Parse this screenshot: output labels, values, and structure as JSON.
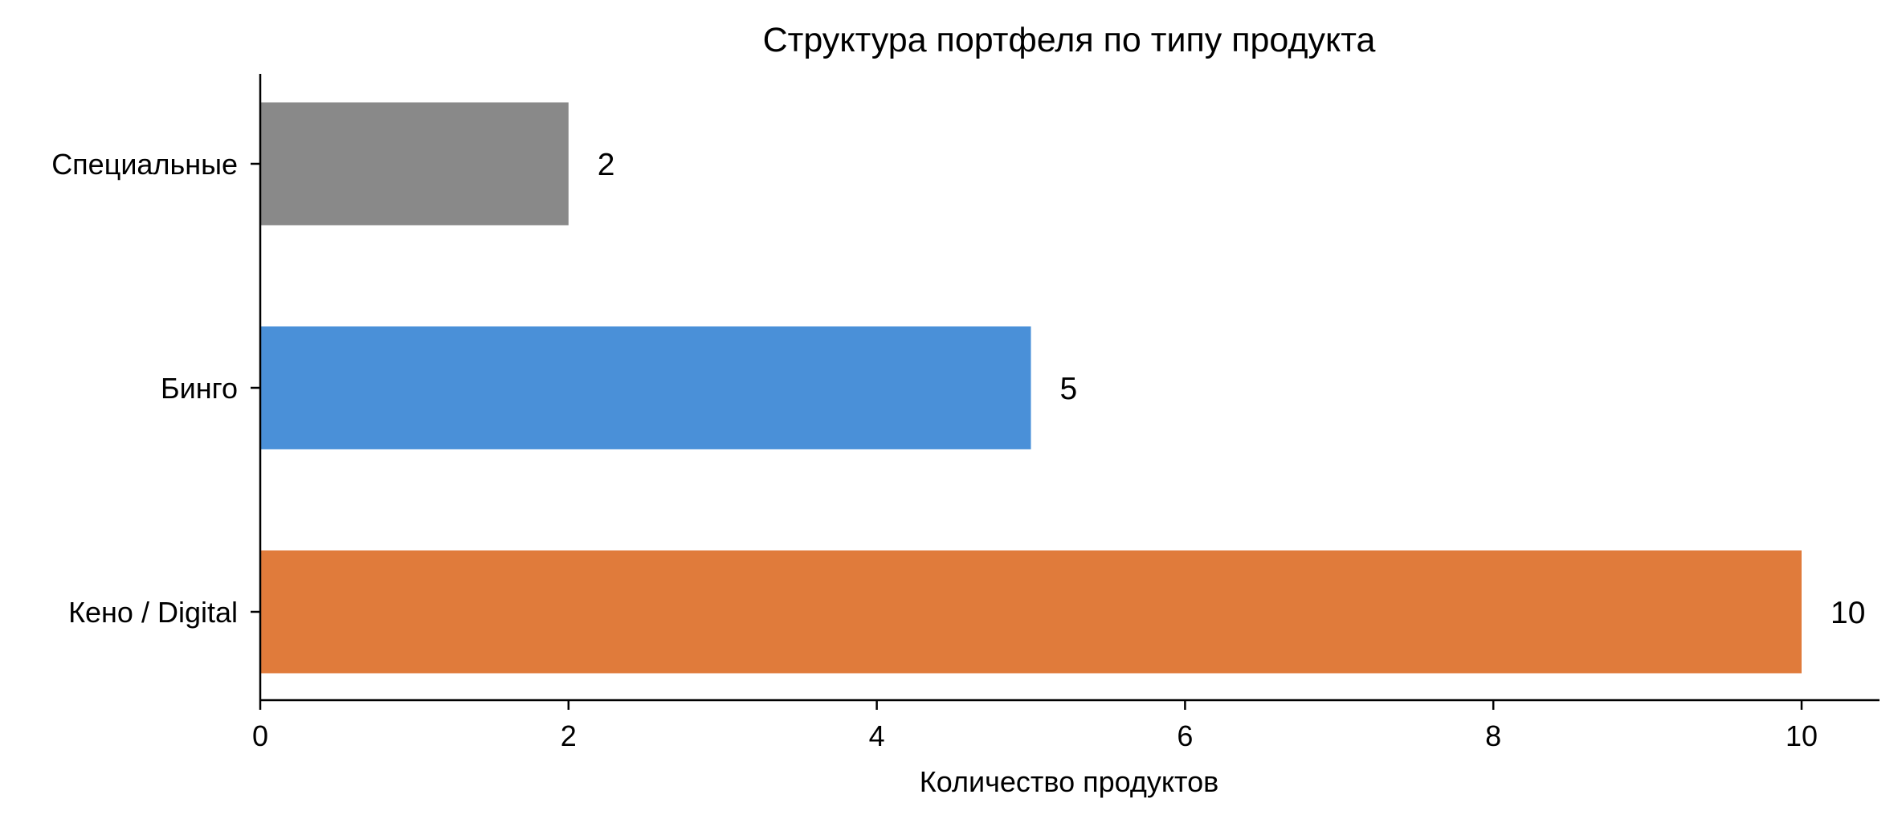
{
  "chart_data": {
    "type": "bar",
    "orientation": "horizontal",
    "title": "Структура портфеля по типу продукта",
    "xlabel": "Количество продуктов",
    "ylabel": "",
    "categories": [
      "Специальные",
      "Бинго",
      "Кено / Digital"
    ],
    "values": [
      2,
      5,
      10
    ],
    "value_labels": [
      "2",
      "5",
      "10"
    ],
    "colors": [
      "#898989",
      "#4a90d8",
      "#e07b3b"
    ],
    "xlim": [
      0,
      10.5
    ],
    "xticks": [
      0,
      2,
      4,
      6,
      8,
      10
    ],
    "xtick_labels": [
      "0",
      "2",
      "4",
      "6",
      "8",
      "10"
    ],
    "grid": false
  }
}
